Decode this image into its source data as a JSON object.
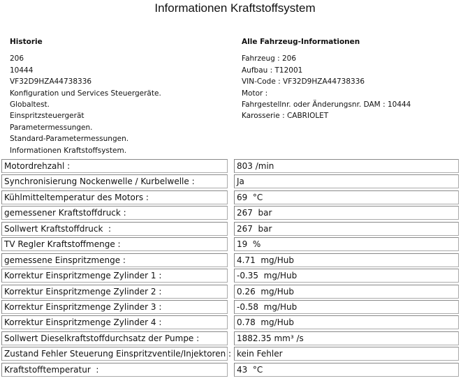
{
  "title": "Informationen Kraftstoffsystem",
  "historie": {
    "heading": "Historie",
    "items": [
      "206",
      "10444",
      "VF32D9HZA44738336",
      "Konfiguration und Services Steuergeräte.",
      "Globaltest.",
      "Einspritzsteuergerät",
      "Parametermessungen.",
      "Standard-Parametermessungen.",
      "Informationen Kraftstoffsystem."
    ]
  },
  "vehicle": {
    "heading": "Alle Fahrzeug-Informationen",
    "items": [
      "Fahrzeug  :  206",
      "Aufbau  :  T12001",
      "VIN-Code  :  VF32D9HZA44738336",
      "Motor  :",
      "Fahrgestellnr. oder Änderungsnr. DAM  :  10444",
      "Karosserie  :  CABRIOLET"
    ]
  },
  "params": [
    {
      "label": "Motordrehzahl :",
      "value": "803 /min"
    },
    {
      "label": "Synchronisierung Nockenwelle / Kurbelwelle :",
      "value": "Ja"
    },
    {
      "label": "Kühlmitteltemperatur des Motors :",
      "value": "69  °C"
    },
    {
      "label": "gemessener Kraftstoffdruck :",
      "value": "267  bar"
    },
    {
      "label": "Sollwert Kraftstoffdruck  :",
      "value": "267  bar"
    },
    {
      "label": "TV Regler Kraftstoffmenge :",
      "value": "19  %"
    },
    {
      "label": "gemessene Einspritzmenge :",
      "value": "4.71  mg/Hub"
    },
    {
      "label": "Korrektur Einspritzmenge Zylinder 1 :",
      "value": "-0.35  mg/Hub"
    },
    {
      "label": "Korrektur Einspritzmenge Zylinder 2 :",
      "value": "0.26  mg/Hub"
    },
    {
      "label": "Korrektur Einspritzmenge Zylinder 3 :",
      "value": "-0.58  mg/Hub"
    },
    {
      "label": "Korrektur Einspritzmenge Zylinder 4 :",
      "value": "0.78  mg/Hub"
    },
    {
      "label": "Sollwert Dieselkraftstoffdurchsatz der Pumpe :",
      "value": "1882.35 mm³ /s"
    },
    {
      "label": "Zustand Fehler Steuerung Einspritzventile/Injektoren :",
      "value": "kein Fehler"
    },
    {
      "label": "Kraftstofftemperatur  :",
      "value": "43  °C"
    }
  ]
}
